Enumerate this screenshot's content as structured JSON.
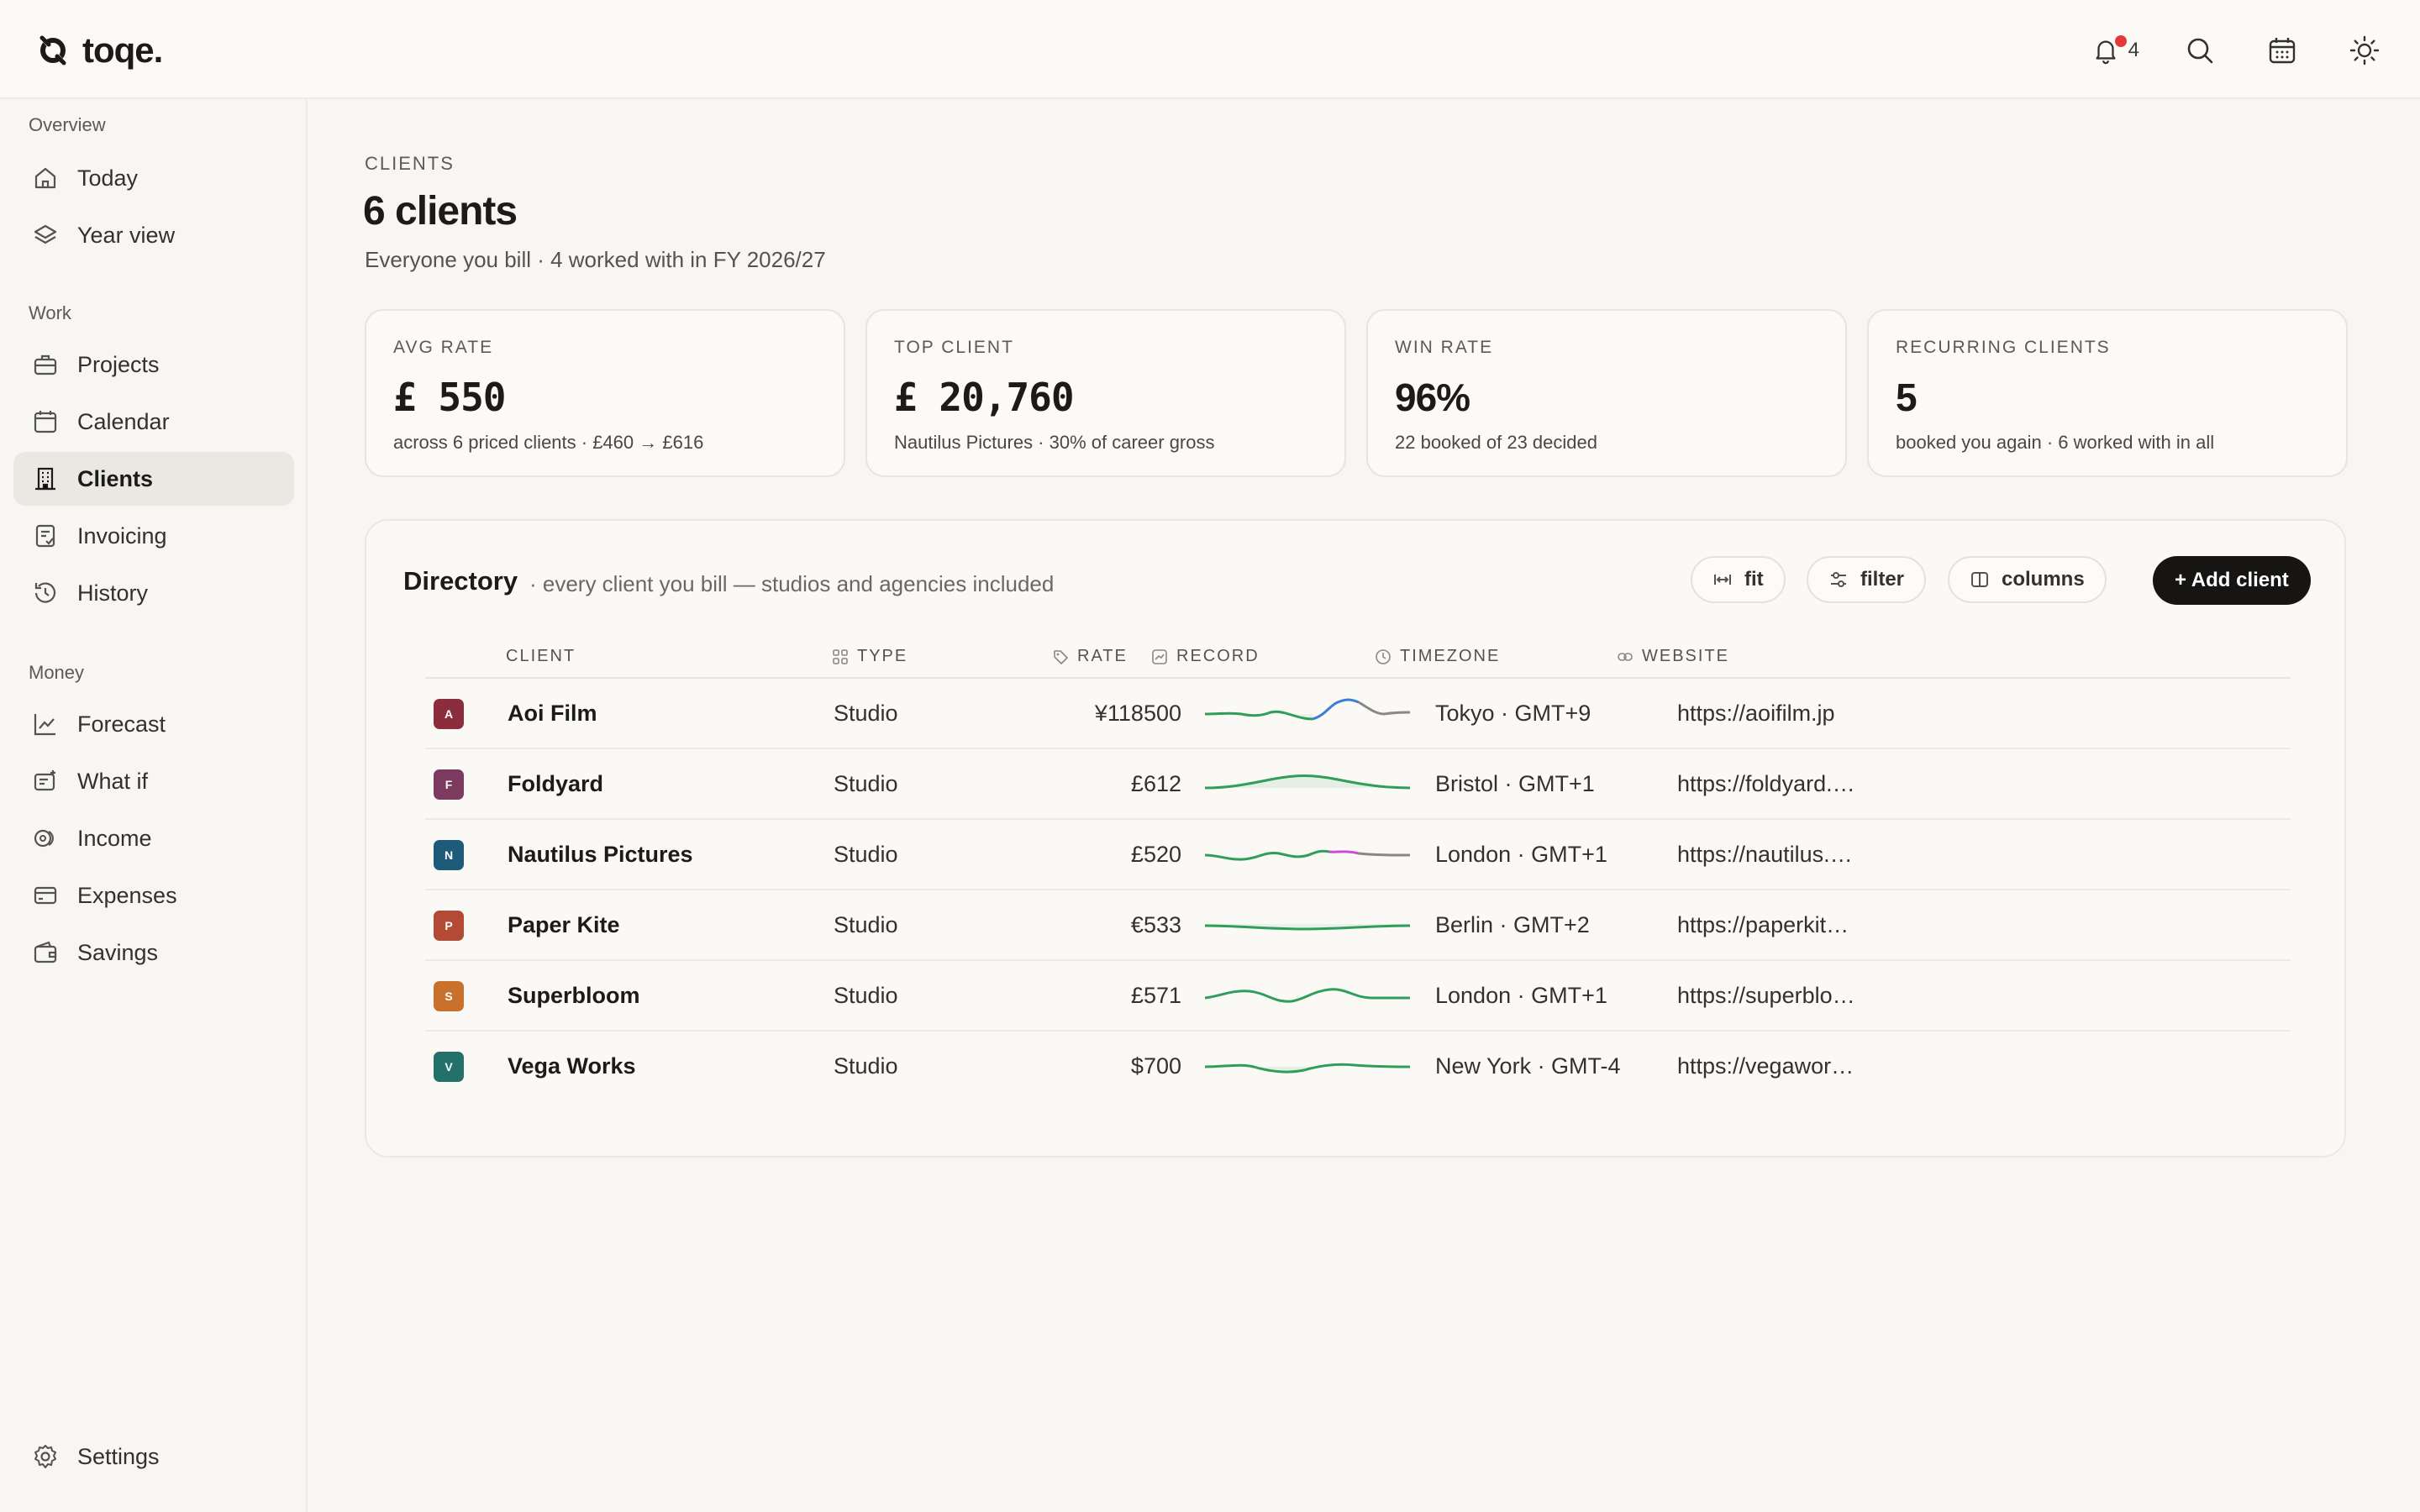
{
  "app": {
    "name": "toqe."
  },
  "topbar": {
    "notification_count": "4",
    "icons": [
      "bell-icon",
      "search-icon",
      "calendar-icon",
      "sun-icon"
    ]
  },
  "sidebar": {
    "sections": [
      {
        "title": "Overview",
        "items": [
          {
            "label": "Today",
            "icon": "home-icon"
          },
          {
            "label": "Year view",
            "icon": "layers-icon"
          }
        ]
      },
      {
        "title": "Work",
        "items": [
          {
            "label": "Projects",
            "icon": "briefcase-icon"
          },
          {
            "label": "Calendar",
            "icon": "calendar-icon"
          },
          {
            "label": "Clients",
            "icon": "building-icon",
            "active": true
          },
          {
            "label": "Invoicing",
            "icon": "invoice-icon"
          },
          {
            "label": "History",
            "icon": "history-icon"
          }
        ]
      },
      {
        "title": "Money",
        "items": [
          {
            "label": "Forecast",
            "icon": "trend-icon"
          },
          {
            "label": "What if",
            "icon": "sparkle-icon"
          },
          {
            "label": "Income",
            "icon": "coins-icon"
          },
          {
            "label": "Expenses",
            "icon": "card-icon"
          },
          {
            "label": "Savings",
            "icon": "wallet-icon"
          }
        ]
      }
    ],
    "settings_label": "Settings"
  },
  "page": {
    "eyebrow": "CLIENTS",
    "title": "6 clients",
    "subtitle": "Everyone you bill · 4 worked with in FY 2026/27"
  },
  "stats": [
    {
      "label": "AVG RATE",
      "value": "£ 550",
      "note": "across 6 priced clients · £460 → £616"
    },
    {
      "label": "TOP CLIENT",
      "value": "£ 20,760",
      "note": "Nautilus Pictures · 30% of career gross"
    },
    {
      "label": "WIN RATE",
      "value": "96%",
      "note": "22 booked of 23 decided"
    },
    {
      "label": "RECURRING CLIENTS",
      "value": "5",
      "note": "booked you again · 6 worked with in all"
    }
  ],
  "directory": {
    "title": "Directory",
    "subtitle": "· every client you bill — studios and agencies included",
    "buttons": {
      "fit": "fit",
      "filter": "filter",
      "columns": "columns",
      "add": "+ Add client"
    },
    "columns": [
      "CLIENT",
      "TYPE",
      "RATE",
      "RECORD",
      "TIMEZONE",
      "WEBSITE"
    ],
    "rows": [
      {
        "initial": "A",
        "color": "#8c2d3e",
        "name": "Aoi Film",
        "type": "Studio",
        "rate": "¥118500",
        "timezone": "Tokyo · GMT+9",
        "website": "https://aoifilm.jp"
      },
      {
        "initial": "F",
        "color": "#7d3a5f",
        "name": "Foldyard",
        "type": "Studio",
        "rate": "£612",
        "timezone": "Bristol · GMT+1",
        "website": "https://foldyard.…"
      },
      {
        "initial": "N",
        "color": "#1d5b78",
        "name": "Nautilus Pictures",
        "type": "Studio",
        "rate": "£520",
        "timezone": "London · GMT+1",
        "website": "https://nautilus.…"
      },
      {
        "initial": "P",
        "color": "#b24a36",
        "name": "Paper Kite",
        "type": "Studio",
        "rate": "€533",
        "timezone": "Berlin · GMT+2",
        "website": "https://paperkit…"
      },
      {
        "initial": "S",
        "color": "#c9702d",
        "name": "Superbloom",
        "type": "Studio",
        "rate": "£571",
        "timezone": "London · GMT+1",
        "website": "https://superblo…"
      },
      {
        "initial": "V",
        "color": "#24706a",
        "name": "Vega Works",
        "type": "Studio",
        "rate": "$700",
        "timezone": "New York · GMT-4",
        "website": "https://vegawor…"
      }
    ]
  },
  "colors": {
    "accent": "#161513",
    "spark_green": "#2f9e5b",
    "spark_blue": "#3b7dd8",
    "spark_grey": "#8a8882",
    "spark_pink": "#d04ad6"
  }
}
